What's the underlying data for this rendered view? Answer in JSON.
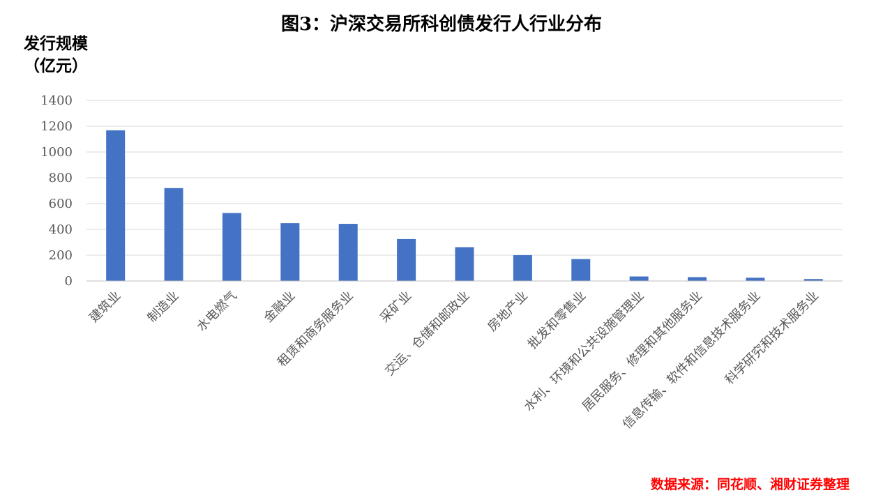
{
  "chart_data": {
    "type": "bar",
    "title": "图3：沪深交易所科创债发行人行业分布",
    "ylabel_line1": "发行规模",
    "ylabel_line2": "（亿元）",
    "xlabel": "",
    "ylim": [
      0,
      1400
    ],
    "yticks": [
      0,
      200,
      400,
      600,
      800,
      1000,
      1200,
      1400
    ],
    "grid": true,
    "categories": [
      "建筑业",
      "制造业",
      "水电燃气",
      "金融业",
      "租赁和商务服务业",
      "采矿业",
      "交运、仓储和邮政业",
      "房地产业",
      "批发和零售业",
      "水利、环境和公共设施管理业",
      "居民服务、修理和其他服务业",
      "信息传输、软件和信息技术服务业",
      "科学研究和技术服务业"
    ],
    "values": [
      1168,
      720,
      527,
      448,
      443,
      325,
      262,
      200,
      170,
      35,
      30,
      25,
      15
    ],
    "bar_color": "#4472c4",
    "grid_color": "#d9d9d9",
    "source": "数据来源：同花顺、湘财证券整理",
    "source_color": "#ff0000"
  }
}
